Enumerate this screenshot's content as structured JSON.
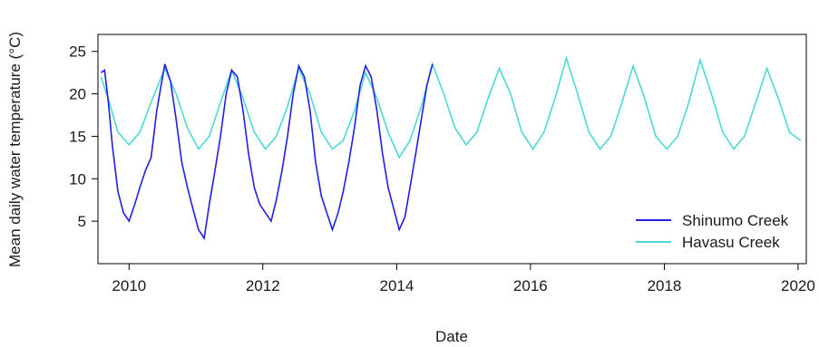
{
  "chart_data": {
    "type": "line",
    "title": "",
    "xlabel": "Date",
    "ylabel": "Mean daily water temperature (°C)",
    "x_tick_labels": [
      "2010",
      "2012",
      "2014",
      "2016",
      "2018",
      "2020"
    ],
    "y_tick_labels": [
      "5",
      "10",
      "15",
      "20",
      "25"
    ],
    "xlim": [
      "2009-07-15",
      "2020-02-15"
    ],
    "ylim": [
      0,
      27
    ],
    "grid": false,
    "legend_position": "bottom-right",
    "series": [
      {
        "name": "Shinumo Creek",
        "color": "#1f1fe6",
        "x": [
          "2009-08-01",
          "2009-08-20",
          "2009-09-10",
          "2009-10-01",
          "2009-11-01",
          "2009-12-01",
          "2010-01-01",
          "2010-02-01",
          "2010-03-01",
          "2010-04-01",
          "2010-05-01",
          "2010-06-01",
          "2010-07-15",
          "2010-08-15",
          "2010-09-15",
          "2010-10-15",
          "2010-11-15",
          "2010-12-15",
          "2011-01-15",
          "2011-02-15",
          "2011-03-15",
          "2011-04-15",
          "2011-05-15",
          "2011-06-15",
          "2011-07-15",
          "2011-08-15",
          "2011-09-15",
          "2011-10-15",
          "2011-11-15",
          "2011-12-15",
          "2012-01-15",
          "2012-02-15",
          "2012-03-15",
          "2012-04-15",
          "2012-05-15",
          "2012-06-15",
          "2012-07-15",
          "2012-08-15",
          "2012-09-15",
          "2012-10-15",
          "2012-11-15",
          "2012-12-15",
          "2013-01-15",
          "2013-02-15",
          "2013-03-15",
          "2013-04-15",
          "2013-05-15",
          "2013-06-15",
          "2013-07-15",
          "2013-08-15",
          "2013-09-15",
          "2013-10-15",
          "2013-11-15",
          "2013-12-15",
          "2014-01-15",
          "2014-02-15",
          "2014-03-15",
          "2014-04-15",
          "2014-05-15",
          "2014-06-15",
          "2014-07-15"
        ],
        "values": [
          22.5,
          22.8,
          19,
          14,
          8.5,
          6,
          5,
          7,
          9,
          11,
          12.5,
          18,
          23.5,
          21.5,
          17,
          12,
          9,
          6.5,
          4,
          3,
          7,
          11,
          15,
          20,
          22.8,
          22,
          18,
          13,
          9,
          7,
          6,
          5,
          7.5,
          11,
          15,
          20,
          23.3,
          22,
          18,
          12,
          8,
          6,
          4,
          6,
          8.5,
          12,
          16,
          21,
          23.3,
          22,
          18,
          13,
          9,
          6.5,
          4,
          5.5,
          9,
          13,
          17,
          21,
          23.5
        ]
      },
      {
        "name": "Havasu Creek",
        "color": "#4dd9d3",
        "x": [
          "2009-08-01",
          "2009-09-15",
          "2009-11-01",
          "2010-01-01",
          "2010-03-01",
          "2010-05-01",
          "2010-07-15",
          "2010-09-15",
          "2010-11-15",
          "2011-01-15",
          "2011-03-15",
          "2011-05-15",
          "2011-07-15",
          "2011-09-15",
          "2011-11-15",
          "2012-01-15",
          "2012-03-15",
          "2012-05-15",
          "2012-07-15",
          "2012-09-15",
          "2012-11-15",
          "2013-01-15",
          "2013-03-15",
          "2013-05-15",
          "2013-07-15",
          "2013-09-15",
          "2013-11-15",
          "2014-01-15",
          "2014-03-15",
          "2014-05-15",
          "2014-07-15",
          "2014-09-15",
          "2014-11-15",
          "2015-01-15",
          "2015-03-15",
          "2015-05-15",
          "2015-07-15",
          "2015-09-15",
          "2015-11-15",
          "2016-01-15",
          "2016-03-15",
          "2016-05-15",
          "2016-07-15",
          "2016-09-15",
          "2016-11-15",
          "2017-01-15",
          "2017-03-15",
          "2017-05-15",
          "2017-07-15",
          "2017-09-15",
          "2017-11-15",
          "2018-01-15",
          "2018-03-15",
          "2018-05-15",
          "2018-07-15",
          "2018-09-15",
          "2018-11-15",
          "2019-01-15",
          "2019-03-15",
          "2019-05-15",
          "2019-07-15",
          "2019-09-15",
          "2019-11-15",
          "2020-01-15"
        ],
        "values": [
          22,
          19,
          15.5,
          14,
          15.5,
          19,
          23,
          20,
          16,
          13.5,
          15,
          19,
          22.8,
          19.5,
          15.5,
          13.5,
          15,
          18.5,
          23,
          20,
          15.5,
          13.5,
          14.5,
          18,
          22.5,
          19.5,
          15.5,
          12.5,
          14.5,
          18.5,
          23.5,
          20,
          16,
          14,
          15.5,
          19.5,
          23,
          20,
          15.5,
          13.5,
          15.5,
          19.5,
          24.2,
          20,
          15.5,
          13.5,
          15,
          19,
          23.3,
          19.5,
          15,
          13.5,
          15,
          19,
          24,
          20,
          15.5,
          13.5,
          15,
          19,
          23,
          19.5,
          15.5,
          14.5
        ]
      }
    ]
  }
}
